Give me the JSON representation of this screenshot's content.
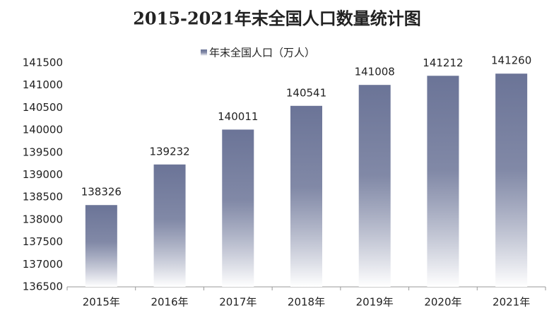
{
  "chart_data": {
    "type": "bar",
    "title": "2015-2021年末全国人口数量统计图",
    "categories": [
      "2015年",
      "2016年",
      "2017年",
      "2018年",
      "2019年",
      "2020年",
      "2021年"
    ],
    "series": [
      {
        "name": "年末全国人口（万人）",
        "color": "#6b7497",
        "values": [
          138326,
          139232,
          140011,
          140541,
          141008,
          141212,
          141260
        ]
      }
    ],
    "ylim": [
      136500,
      141500
    ],
    "yticks": [
      136500,
      137000,
      137500,
      138000,
      138500,
      139000,
      139500,
      140000,
      140500,
      141000,
      141500
    ],
    "legend": "top",
    "grid": false
  }
}
